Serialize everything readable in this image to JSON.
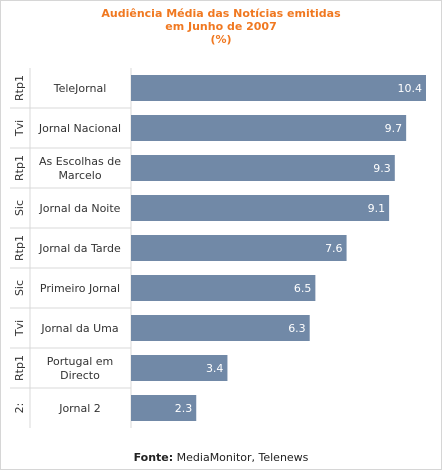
{
  "chart_data": {
    "type": "bar",
    "orientation": "horizontal",
    "title_lines": [
      "Audiência Média das Notícias emitidas",
      "em Junho de 2007",
      "(%)"
    ],
    "categories": [
      "TeleJornal",
      "Jornal Nacional",
      "As Escolhas de Marcelo",
      "Jornal da Noite",
      "Jornal da Tarde",
      "Primeiro Jornal",
      "Jornal da Uma",
      "Portugal em Directo",
      "Jornal 2"
    ],
    "category_lines": [
      [
        "TeleJornal"
      ],
      [
        "Jornal Nacional"
      ],
      [
        "As Escolhas de",
        "Marcelo"
      ],
      [
        "Jornal da Noite"
      ],
      [
        "Jornal da Tarde"
      ],
      [
        "Primeiro Jornal"
      ],
      [
        "Jornal da Uma"
      ],
      [
        "Portugal em",
        "Directo"
      ],
      [
        "Jornal 2"
      ]
    ],
    "groups": [
      "Rtp1",
      "Tvi",
      "Rtp1",
      "Sic",
      "Rtp1",
      "Sic",
      "Tvi",
      "Rtp1",
      "2:"
    ],
    "values": [
      10.4,
      9.7,
      9.3,
      9.1,
      7.6,
      6.5,
      6.3,
      3.4,
      2.3
    ],
    "value_labels": [
      "10.4",
      "9.7",
      "9.3",
      "9.1",
      "7.6",
      "6.5",
      "6.3",
      "3.4",
      "2.3"
    ],
    "xlim": [
      0,
      10.4
    ],
    "grid": false,
    "legend": "none",
    "colors": {
      "bar": "#7189a7",
      "title": "#f07820",
      "label": "#333333",
      "divider": "#d9d9d9",
      "value_text": "#ffffff"
    }
  },
  "source": {
    "label": "Fonte:",
    "text": " MediaMonitor, Telenews"
  }
}
